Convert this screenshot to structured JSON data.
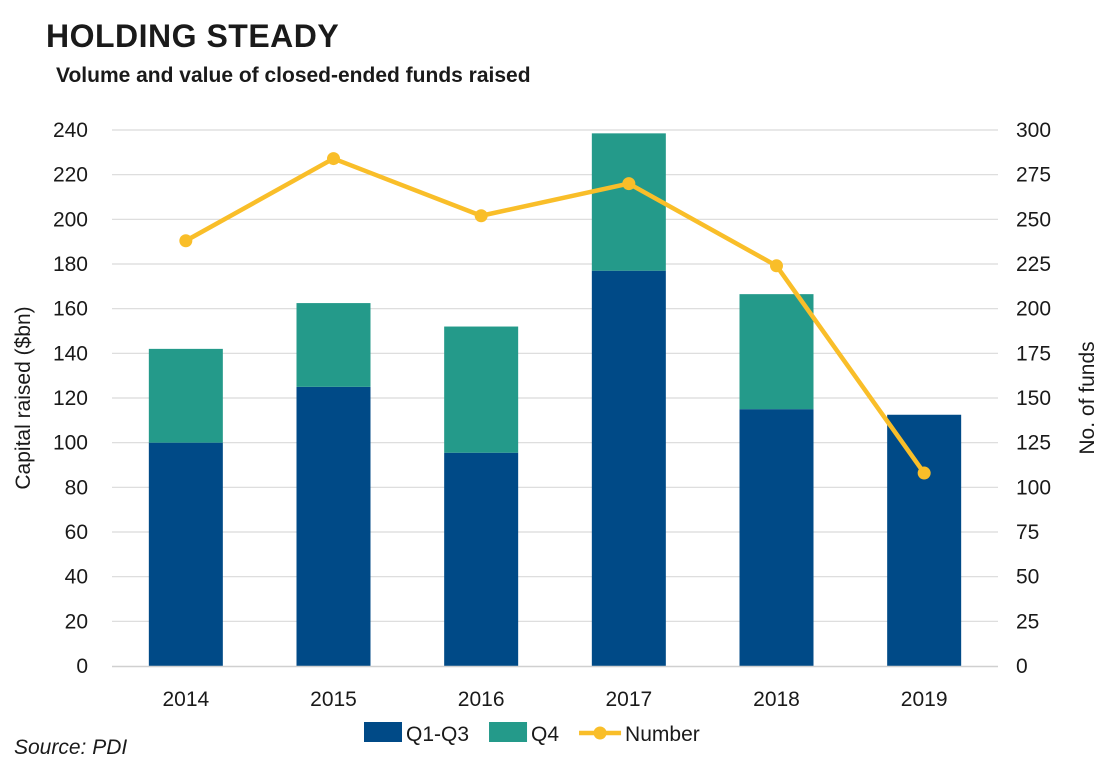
{
  "title": "HOLDING STEADY",
  "subtitle": "Volume and value of closed-ended funds raised",
  "source": "Source: PDI",
  "chart_data": {
    "type": "bar",
    "stacked": true,
    "categories": [
      "2014",
      "2015",
      "2016",
      "2017",
      "2018",
      "2019"
    ],
    "series": [
      {
        "name": "Q1-Q3",
        "type": "bar",
        "axis": "left",
        "color": "#004A87",
        "values": [
          100,
          125,
          95.5,
          177,
          115,
          112.5
        ]
      },
      {
        "name": "Q4",
        "type": "bar",
        "axis": "left",
        "color": "#249A8A",
        "values": [
          42,
          37.5,
          56.5,
          61.5,
          51.5,
          0
        ]
      },
      {
        "name": "Number",
        "type": "line",
        "axis": "right",
        "color": "#F9BE29",
        "values": [
          238,
          284,
          252,
          270,
          224,
          108
        ]
      }
    ],
    "ylabel": "Capital raised ($bn)",
    "y2label": "No. of funds",
    "ylim": [
      0,
      240
    ],
    "y2lim": [
      0,
      300
    ],
    "yticks": [
      "0",
      "20",
      "40",
      "60",
      "80",
      "100",
      "120",
      "140",
      "160",
      "180",
      "200",
      "220",
      "240"
    ],
    "y2ticks": [
      "0",
      "25",
      "50",
      "75",
      "100",
      "125",
      "150",
      "175",
      "200",
      "225",
      "250",
      "275",
      "300"
    ],
    "grid": true,
    "legend": "bottom-center"
  }
}
